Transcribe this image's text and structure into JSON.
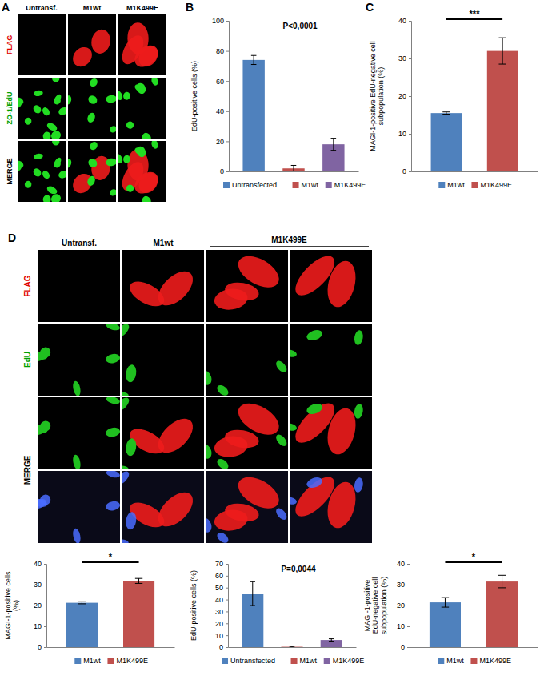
{
  "figure": {
    "panel_labels": [
      "A",
      "B",
      "C",
      "D"
    ],
    "panel_a": {
      "columns": [
        "Untransf.",
        "M1wt",
        "M1K499E"
      ],
      "rows": [
        "FLAG",
        "ZO-1/EdU",
        "MERGE"
      ]
    },
    "panel_d": {
      "columns": [
        "Untransf.",
        "M1wt",
        "M1K499E"
      ],
      "rows": [
        "FLAG",
        "EdU",
        "MERGE"
      ]
    }
  },
  "chart_data": [
    {
      "type": "bar",
      "y_label": "EdU-positive cells (%)",
      "categories": [
        "Untransfected",
        "M1wt",
        "M1K499E"
      ],
      "values": [
        74,
        2,
        18
      ],
      "errors": [
        3,
        2,
        4
      ],
      "colors": [
        "#4f81bd",
        "#c0504d",
        "#8064a2"
      ],
      "ylim": [
        0,
        100
      ],
      "yticks": [
        0,
        20,
        40,
        60,
        80,
        100
      ],
      "annotation": "P<0,0001",
      "legend": "bottom",
      "tick_labels": "y",
      "grid": false
    },
    {
      "type": "bar",
      "y_label": "MAGI-1-positive EdU-negative cell subpopulation (%)",
      "categories": [
        "M1wt",
        "M1K499E"
      ],
      "values": [
        15.5,
        32
      ],
      "errors": [
        0.3,
        3.5
      ],
      "colors": [
        "#4f81bd",
        "#c0504d"
      ],
      "ylim": [
        0,
        40
      ],
      "yticks": [
        0,
        10,
        20,
        30,
        40
      ],
      "annotation": "***",
      "legend": "bottom",
      "tick_labels": "y",
      "grid": false
    },
    {
      "type": "bar",
      "y_label": "MAGI-1-positive cells (%)",
      "categories": [
        "M1wt",
        "M1K499E"
      ],
      "values": [
        21.3,
        31.8
      ],
      "errors": [
        0.5,
        1.2
      ],
      "colors": [
        "#4f81bd",
        "#c0504d"
      ],
      "ylim": [
        0,
        40
      ],
      "yticks": [
        0,
        10,
        20,
        30,
        40
      ],
      "annotation": "*",
      "legend": "bottom",
      "tick_labels": "y",
      "grid": false
    },
    {
      "type": "bar",
      "y_label": "EdU-positive cells (%)",
      "categories": [
        "Untransfected",
        "M1wt",
        "M1K499E"
      ],
      "values": [
        45,
        0.3,
        6
      ],
      "errors": [
        10,
        0.3,
        1
      ],
      "colors": [
        "#4f81bd",
        "#c0504d",
        "#8064a2"
      ],
      "ylim": [
        0,
        70
      ],
      "yticks": [
        0,
        10,
        20,
        30,
        40,
        50,
        60,
        70
      ],
      "annotation": "P=0,0044",
      "legend": "bottom",
      "tick_labels": "y",
      "grid": false
    },
    {
      "type": "bar",
      "y_label": "MAGI-1-positive EdU-negative cell subpopulation (%)",
      "categories": [
        "M1wt",
        "M1K499E"
      ],
      "values": [
        21.5,
        31.5
      ],
      "errors": [
        2.3,
        3
      ],
      "colors": [
        "#4f81bd",
        "#c0504d"
      ],
      "ylim": [
        0,
        40
      ],
      "yticks": [
        0,
        10,
        20,
        30,
        40
      ],
      "annotation": "*",
      "legend": "bottom",
      "tick_labels": "y",
      "grid": false
    }
  ]
}
